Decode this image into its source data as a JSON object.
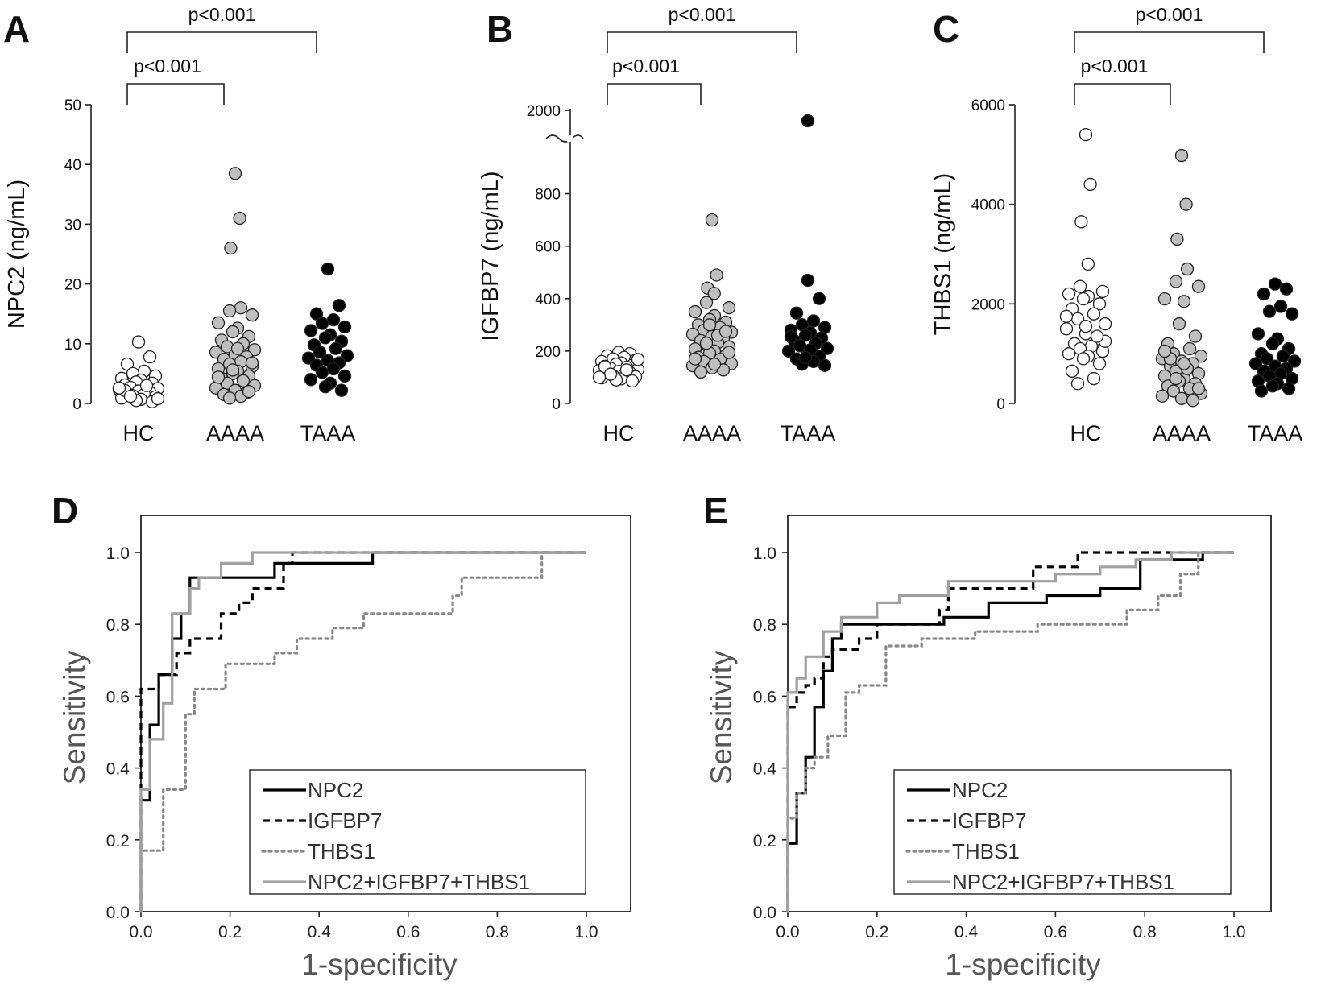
{
  "chart_data": [
    {
      "id": "A",
      "type": "scatter",
      "panel_label": "A",
      "ylabel": "NPC2 (ng/mL)",
      "ylim": [
        0,
        50
      ],
      "yticks": [
        0,
        10,
        20,
        30,
        40,
        50
      ],
      "categories": [
        "HC",
        "AAAA",
        "TAAA"
      ],
      "comparisons": [
        {
          "from": "HC",
          "to": "AAAA",
          "label": "p<0.001"
        },
        {
          "from": "HC",
          "to": "TAAA",
          "label": "p<0.001"
        }
      ],
      "series": [
        {
          "category": "HC",
          "color": "#ffffff",
          "values": [
            10.3,
            7.8,
            6.6,
            5.4,
            5.0,
            4.6,
            4.2,
            3.9,
            3.6,
            3.4,
            3.1,
            2.9,
            2.7,
            2.5,
            2.3,
            2.1,
            1.9,
            1.7,
            1.5,
            1.3,
            1.1,
            0.9,
            0.7,
            0.5,
            0.3,
            2.2,
            3.0,
            1.2,
            0.8,
            2.6
          ]
        },
        {
          "category": "AAAA",
          "color": "#bfbfbf",
          "values": [
            38.5,
            31.0,
            26.0,
            16.0,
            15.5,
            14.8,
            13.5,
            12.6,
            12.0,
            11.2,
            10.6,
            10.0,
            9.5,
            9.0,
            8.6,
            8.2,
            7.8,
            7.4,
            7.0,
            6.6,
            6.2,
            5.8,
            5.4,
            5.0,
            4.6,
            4.2,
            3.8,
            3.4,
            3.0,
            2.6,
            2.2,
            1.8,
            1.5,
            1.2,
            0.9,
            6.8,
            4.4,
            9.2,
            5.6,
            2.0
          ]
        },
        {
          "category": "TAAA",
          "color": "#000000",
          "values": [
            22.5,
            16.4,
            15.0,
            14.0,
            13.4,
            12.8,
            12.2,
            11.5,
            11.0,
            10.4,
            9.8,
            9.2,
            8.6,
            8.0,
            7.6,
            7.2,
            6.8,
            6.4,
            5.8,
            5.2,
            4.6,
            4.0,
            3.4,
            2.8,
            2.2
          ]
        }
      ]
    },
    {
      "id": "B",
      "type": "scatter",
      "panel_label": "B",
      "ylabel": "IGFBP7 (ng/mL)",
      "ylim": [
        0,
        900
      ],
      "yticks": [
        0,
        200,
        400,
        600,
        800
      ],
      "ybreak_tick": 2000,
      "categories": [
        "HC",
        "AAAA",
        "TAAA"
      ],
      "comparisons": [
        {
          "from": "HC",
          "to": "AAAA",
          "label": "p<0.001"
        },
        {
          "from": "HC",
          "to": "TAAA",
          "label": "p<0.001"
        }
      ],
      "series": [
        {
          "category": "HC",
          "color": "#ffffff",
          "values": [
            195,
            190,
            182,
            176,
            170,
            165,
            160,
            155,
            150,
            146,
            142,
            138,
            134,
            130,
            126,
            122,
            118,
            114,
            110,
            106,
            102,
            98,
            94,
            90,
            86,
            140,
            128,
            112,
            168,
            100
          ]
        },
        {
          "category": "AAAA",
          "color": "#bfbfbf",
          "values": [
            700,
            490,
            440,
            420,
            385,
            365,
            350,
            335,
            320,
            310,
            300,
            290,
            280,
            272,
            264,
            256,
            248,
            240,
            232,
            224,
            216,
            208,
            200,
            192,
            184,
            176,
            168,
            160,
            152,
            144,
            136,
            128,
            120,
            260,
            230,
            195,
            170,
            150,
            300,
            275
          ]
        },
        {
          "category": "TAAA",
          "color": "#000000",
          "break_values": [
            1900
          ],
          "values": [
            470,
            400,
            345,
            315,
            300,
            290,
            280,
            270,
            260,
            250,
            240,
            230,
            220,
            210,
            200,
            190,
            180,
            170,
            160,
            150,
            145,
            255,
            205,
            175
          ]
        }
      ]
    },
    {
      "id": "C",
      "type": "scatter",
      "panel_label": "C",
      "ylabel": "THBS1 (ng/mL)",
      "ylim": [
        0,
        6000
      ],
      "yticks": [
        0,
        2000,
        4000,
        6000
      ],
      "categories": [
        "HC",
        "AAAA",
        "TAAA"
      ],
      "comparisons": [
        {
          "from": "HC",
          "to": "AAAA",
          "label": "p<0.001"
        },
        {
          "from": "HC",
          "to": "TAAA",
          "label": "p<0.001"
        }
      ],
      "series": [
        {
          "category": "HC",
          "color": "#ffffff",
          "values": [
            5400,
            4400,
            3650,
            2800,
            2350,
            2250,
            2200,
            2150,
            2100,
            2000,
            1900,
            1800,
            1700,
            1600,
            1500,
            1400,
            1300,
            1200,
            1150,
            1100,
            1050,
            1000,
            950,
            900,
            800,
            650,
            500,
            400,
            1250,
            1750,
            1550,
            1350
          ]
        },
        {
          "category": "AAAA",
          "color": "#bfbfbf",
          "values": [
            4980,
            4000,
            3300,
            2700,
            2450,
            2350,
            2100,
            2050,
            1600,
            1350,
            1200,
            1100,
            1000,
            950,
            900,
            850,
            800,
            750,
            700,
            650,
            600,
            550,
            500,
            450,
            400,
            350,
            300,
            250,
            200,
            150,
            100,
            60,
            900,
            700,
            500,
            300,
            1050,
            800
          ]
        },
        {
          "category": "TAAA",
          "color": "#000000",
          "values": [
            2400,
            2300,
            2200,
            1950,
            1850,
            1800,
            1400,
            1300,
            1200,
            1100,
            1000,
            950,
            900,
            850,
            800,
            750,
            700,
            650,
            600,
            550,
            500,
            450,
            400,
            350,
            300,
            250
          ]
        }
      ]
    },
    {
      "id": "D",
      "type": "line",
      "panel_label": "D",
      "xlabel": "1-specificity",
      "ylabel": "Sensitivity",
      "xlim": [
        0,
        1
      ],
      "ylim": [
        0,
        1
      ],
      "xticks": [
        0.0,
        0.2,
        0.4,
        0.6,
        0.8,
        1.0
      ],
      "yticks": [
        0.0,
        0.2,
        0.4,
        0.6,
        0.8,
        1.0
      ],
      "xtick_labels": [
        "0.0",
        "0.2",
        "0.4",
        "0.6",
        "0.8",
        "1.0"
      ],
      "ytick_labels": [
        "0.0",
        "0.2",
        "0.4",
        "0.6",
        "0.8",
        "1.0"
      ],
      "legend_position": "bottom-right",
      "series": [
        {
          "name": "NPC2",
          "color": "#000000",
          "dash": "solid",
          "x": [
            0,
            0,
            0.02,
            0.02,
            0.04,
            0.04,
            0.07,
            0.07,
            0.09,
            0.09,
            0.11,
            0.11,
            0.14,
            0.14,
            0.3,
            0.3,
            0.52,
            0.52,
            1.0
          ],
          "y": [
            0,
            0.31,
            0.31,
            0.52,
            0.52,
            0.66,
            0.66,
            0.76,
            0.76,
            0.83,
            0.83,
            0.93,
            0.93,
            0.93,
            0.93,
            0.97,
            0.97,
            1.0,
            1.0
          ]
        },
        {
          "name": "IGFBP7",
          "color": "#000000",
          "dash": "dashed",
          "x": [
            0,
            0,
            0.04,
            0.04,
            0.08,
            0.08,
            0.11,
            0.11,
            0.15,
            0.15,
            0.18,
            0.18,
            0.22,
            0.22,
            0.25,
            0.25,
            0.32,
            0.32,
            0.34,
            0.34,
            1.0
          ],
          "y": [
            0,
            0.62,
            0.62,
            0.66,
            0.66,
            0.72,
            0.72,
            0.76,
            0.76,
            0.76,
            0.76,
            0.83,
            0.83,
            0.86,
            0.86,
            0.9,
            0.9,
            0.97,
            0.97,
            1.0,
            1.0
          ]
        },
        {
          "name": "THBS1",
          "color": "#888888",
          "dash": "dotted",
          "x": [
            0,
            0,
            0.05,
            0.05,
            0.1,
            0.1,
            0.12,
            0.12,
            0.19,
            0.19,
            0.23,
            0.23,
            0.3,
            0.3,
            0.35,
            0.35,
            0.43,
            0.43,
            0.5,
            0.5,
            0.7,
            0.7,
            0.72,
            0.72,
            0.9,
            0.9,
            1.0
          ],
          "y": [
            0,
            0.17,
            0.17,
            0.34,
            0.34,
            0.55,
            0.55,
            0.62,
            0.62,
            0.69,
            0.69,
            0.69,
            0.69,
            0.72,
            0.72,
            0.76,
            0.76,
            0.79,
            0.79,
            0.83,
            0.83,
            0.88,
            0.88,
            0.93,
            0.93,
            1.0,
            1.0
          ]
        },
        {
          "name": "NPC2+IGFBP7+THBS1",
          "color": "#a0a0a0",
          "dash": "solid",
          "x": [
            0,
            0,
            0.02,
            0.02,
            0.05,
            0.05,
            0.07,
            0.07,
            0.11,
            0.11,
            0.13,
            0.13,
            0.18,
            0.18,
            0.25,
            0.25,
            1.0
          ],
          "y": [
            0,
            0.34,
            0.34,
            0.48,
            0.48,
            0.58,
            0.58,
            0.83,
            0.83,
            0.9,
            0.9,
            0.93,
            0.93,
            0.97,
            0.97,
            1.0,
            1.0
          ]
        }
      ]
    },
    {
      "id": "E",
      "type": "line",
      "panel_label": "E",
      "xlabel": "1-specificity",
      "ylabel": "Sensitivity",
      "xlim": [
        0,
        1
      ],
      "ylim": [
        0,
        1
      ],
      "xticks": [
        0.0,
        0.2,
        0.4,
        0.6,
        0.8,
        1.0
      ],
      "yticks": [
        0.0,
        0.2,
        0.4,
        0.6,
        0.8,
        1.0
      ],
      "xtick_labels": [
        "0.0",
        "0.2",
        "0.4",
        "0.6",
        "0.8",
        "1.0"
      ],
      "ytick_labels": [
        "0.0",
        "0.2",
        "0.4",
        "0.6",
        "0.8",
        "1.0"
      ],
      "legend_position": "bottom-right",
      "series": [
        {
          "name": "NPC2",
          "color": "#000000",
          "dash": "solid",
          "x": [
            0,
            0,
            0.02,
            0.02,
            0.04,
            0.04,
            0.06,
            0.06,
            0.08,
            0.08,
            0.1,
            0.1,
            0.12,
            0.12,
            0.14,
            0.14,
            0.35,
            0.35,
            0.45,
            0.45,
            0.58,
            0.58,
            0.7,
            0.7,
            0.79,
            0.79,
            0.93,
            0.93,
            1.0
          ],
          "y": [
            0,
            0.19,
            0.19,
            0.33,
            0.33,
            0.43,
            0.43,
            0.57,
            0.57,
            0.67,
            0.67,
            0.76,
            0.76,
            0.8,
            0.8,
            0.8,
            0.8,
            0.82,
            0.82,
            0.86,
            0.86,
            0.88,
            0.88,
            0.9,
            0.9,
            0.98,
            0.98,
            1.0,
            1.0
          ]
        },
        {
          "name": "IGFBP7",
          "color": "#000000",
          "dash": "dashed",
          "x": [
            0,
            0,
            0.02,
            0.02,
            0.04,
            0.04,
            0.06,
            0.06,
            0.08,
            0.08,
            0.1,
            0.1,
            0.16,
            0.16,
            0.2,
            0.2,
            0.34,
            0.34,
            0.36,
            0.36,
            0.55,
            0.55,
            0.65,
            0.65,
            1.0
          ],
          "y": [
            0,
            0.57,
            0.57,
            0.61,
            0.61,
            0.63,
            0.63,
            0.65,
            0.65,
            0.71,
            0.71,
            0.73,
            0.73,
            0.76,
            0.76,
            0.8,
            0.8,
            0.84,
            0.84,
            0.9,
            0.9,
            0.96,
            0.96,
            1.0,
            1.0
          ]
        },
        {
          "name": "THBS1",
          "color": "#888888",
          "dash": "dotted",
          "x": [
            0,
            0,
            0.02,
            0.02,
            0.04,
            0.04,
            0.06,
            0.06,
            0.09,
            0.09,
            0.13,
            0.13,
            0.16,
            0.16,
            0.22,
            0.22,
            0.3,
            0.3,
            0.42,
            0.42,
            0.56,
            0.56,
            0.76,
            0.76,
            0.83,
            0.83,
            0.88,
            0.88,
            0.92,
            0.92,
            1.0
          ],
          "y": [
            0,
            0.26,
            0.26,
            0.33,
            0.33,
            0.4,
            0.4,
            0.43,
            0.43,
            0.49,
            0.49,
            0.61,
            0.61,
            0.63,
            0.63,
            0.74,
            0.74,
            0.76,
            0.76,
            0.78,
            0.78,
            0.8,
            0.8,
            0.84,
            0.84,
            0.88,
            0.88,
            0.94,
            0.94,
            1.0,
            1.0
          ]
        },
        {
          "name": "NPC2+IGFBP7+THBS1",
          "color": "#a0a0a0",
          "dash": "solid",
          "x": [
            0,
            0,
            0.02,
            0.02,
            0.04,
            0.04,
            0.08,
            0.08,
            0.12,
            0.12,
            0.2,
            0.2,
            0.25,
            0.25,
            0.36,
            0.36,
            0.6,
            0.6,
            0.7,
            0.7,
            0.78,
            0.78,
            0.86,
            0.86,
            1.0
          ],
          "y": [
            0,
            0.61,
            0.61,
            0.65,
            0.65,
            0.71,
            0.71,
            0.78,
            0.78,
            0.82,
            0.82,
            0.86,
            0.86,
            0.88,
            0.88,
            0.92,
            0.92,
            0.94,
            0.94,
            0.96,
            0.96,
            0.98,
            0.98,
            1.0,
            1.0
          ]
        }
      ]
    }
  ]
}
